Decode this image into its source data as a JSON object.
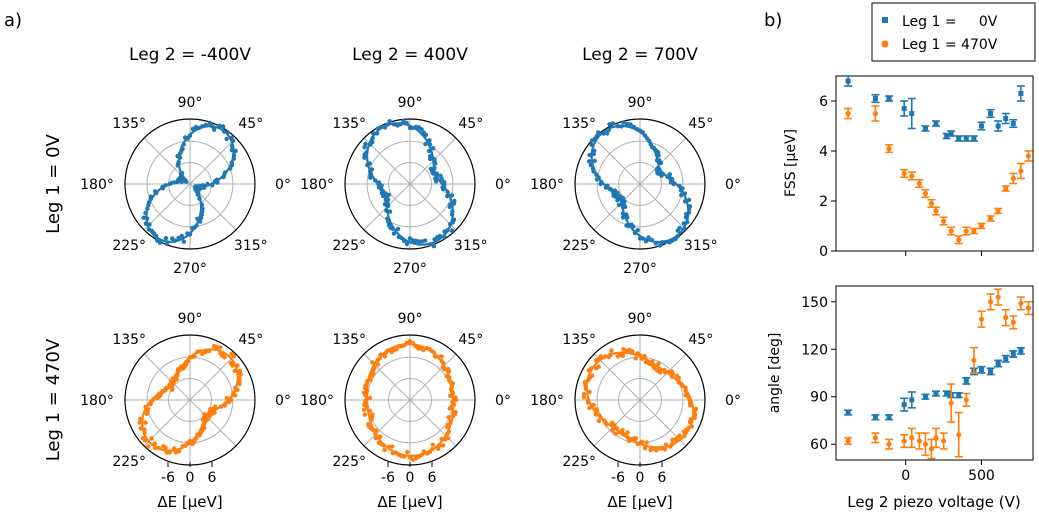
{
  "panel_labels": {
    "a": "a)",
    "b": "b)"
  },
  "colors": {
    "blue": "#1f77b4",
    "orange": "#ff7f0e",
    "grid": "#b0b0b0"
  },
  "polar": {
    "column_titles": [
      "Leg 2 = -400V",
      "Leg 2 = 400V",
      "Leg 2 = 700V"
    ],
    "row_labels": [
      "Leg 1 = 0V",
      "Leg 1 = 470V"
    ],
    "angle_ticks": [
      "0°",
      "45°",
      "90°",
      "135°",
      "180°",
      "225°",
      "270°",
      "315°"
    ],
    "radial_xlabel": "ΔE [µeV]",
    "radial_ticks": [
      "-6",
      "0",
      "6"
    ]
  },
  "chart_data": [
    {
      "type": "scatter",
      "title": "",
      "xlabel": "",
      "ylabel": "FSS [µeV]",
      "xlim": [
        -460,
        840
      ],
      "ylim": [
        0,
        7
      ],
      "x_ticks": [
        0,
        500
      ],
      "y_ticks": [
        0,
        2,
        4,
        6
      ],
      "legend": {
        "placement": "top",
        "entries": [
          "Leg 1 =     0V",
          "Leg 1 = 470V"
        ]
      },
      "series": [
        {
          "name": "Leg 1 =     0V",
          "color": "#1f77b4",
          "x": [
            -380,
            -200,
            -110,
            -10,
            40,
            130,
            200,
            270,
            300,
            350,
            400,
            450,
            500,
            560,
            610,
            660,
            710,
            760
          ],
          "y": [
            6.8,
            6.1,
            6.1,
            5.7,
            5.5,
            4.9,
            5.1,
            4.6,
            4.7,
            4.5,
            4.5,
            4.5,
            5.0,
            5.5,
            5.0,
            5.3,
            5.1,
            6.3
          ],
          "yerr": [
            0.2,
            0.15,
            0.1,
            0.3,
            0.6,
            0.1,
            0.1,
            0.1,
            0.1,
            0.1,
            0.1,
            0.1,
            0.15,
            0.15,
            0.2,
            0.2,
            0.15,
            0.3
          ]
        },
        {
          "name": "Leg 1 = 470V",
          "color": "#ff7f0e",
          "x": [
            -380,
            -200,
            -110,
            -10,
            40,
            90,
            130,
            170,
            200,
            250,
            300,
            350,
            400,
            450,
            500,
            560,
            610,
            660,
            710,
            760,
            810
          ],
          "y": [
            5.5,
            5.5,
            4.1,
            3.1,
            3.0,
            2.7,
            2.3,
            1.9,
            1.6,
            1.2,
            0.8,
            0.45,
            0.8,
            0.8,
            1.0,
            1.3,
            1.6,
            2.5,
            2.9,
            3.2,
            3.8
          ],
          "yerr": [
            0.2,
            0.3,
            0.15,
            0.15,
            0.15,
            0.15,
            0.15,
            0.15,
            0.15,
            0.15,
            0.15,
            0.15,
            0.15,
            0.1,
            0.1,
            0.1,
            0.1,
            0.1,
            0.2,
            0.3,
            0.2
          ]
        }
      ]
    },
    {
      "type": "scatter",
      "title": "",
      "xlabel": "Leg 2 piezo voltage (V)",
      "ylabel": "angle [deg]",
      "xlim": [
        -460,
        840
      ],
      "ylim": [
        50,
        160
      ],
      "x_ticks": [
        0,
        500
      ],
      "y_ticks": [
        60,
        90,
        120,
        150
      ],
      "series": [
        {
          "name": "Leg 1 =     0V",
          "color": "#1f77b4",
          "x": [
            -380,
            -200,
            -110,
            -10,
            40,
            130,
            200,
            270,
            300,
            350,
            400,
            450,
            500,
            560,
            610,
            660,
            710,
            760
          ],
          "y": [
            80,
            77,
            77,
            85,
            88,
            90,
            92,
            92,
            91,
            91,
            100,
            106,
            107,
            106,
            111,
            114,
            117,
            119
          ],
          "yerr": [
            1.5,
            1.5,
            1.5,
            4,
            5,
            1.5,
            1.5,
            1.5,
            1.5,
            1.5,
            2,
            2,
            2,
            2,
            2,
            2,
            2,
            2
          ]
        },
        {
          "name": "Leg 1 = 470V",
          "color": "#ff7f0e",
          "x": [
            -380,
            -200,
            -110,
            -10,
            40,
            90,
            130,
            170,
            200,
            250,
            300,
            350,
            400,
            450,
            500,
            560,
            610,
            660,
            710,
            760,
            810
          ],
          "y": [
            62,
            64,
            60,
            62,
            64,
            62,
            60,
            57,
            64,
            62,
            86,
            66,
            88,
            113,
            139,
            150,
            153,
            140,
            137,
            149,
            146
          ],
          "yerr": [
            2,
            3,
            3,
            4,
            6,
            5,
            7,
            6,
            6,
            5,
            12,
            14,
            4,
            8,
            5,
            5,
            5,
            5,
            4,
            4,
            4
          ]
        }
      ]
    }
  ]
}
